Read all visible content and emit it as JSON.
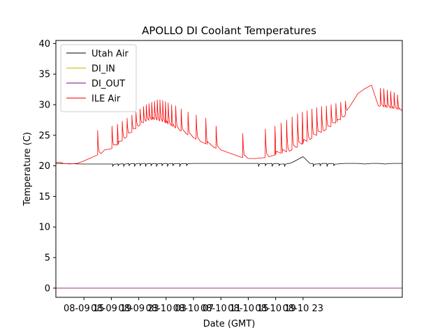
{
  "chart_data": {
    "type": "line",
    "title": "APOLLO DI Coolant Temperatures",
    "xlabel": "Date (GMT)",
    "ylabel": "Temperature (C)",
    "xlim_hours": [
      -4.1,
      46.5
    ],
    "ylim": [
      -1.5,
      40.5
    ],
    "yticks": [
      0,
      5,
      10,
      15,
      20,
      25,
      30,
      35,
      40
    ],
    "xticks": [
      {
        "hour": 0,
        "label": "08-09 15"
      },
      {
        "hour": 4,
        "label": "08-09 19"
      },
      {
        "hour": 8,
        "label": "08-09 23"
      },
      {
        "hour": 12,
        "label": "08-10 03"
      },
      {
        "hour": 16,
        "label": "08-10 07"
      },
      {
        "hour": 20,
        "label": "08-10 11"
      },
      {
        "hour": 24,
        "label": "08-10 15"
      },
      {
        "hour": 28,
        "label": "08-10 19"
      },
      {
        "hour": 32,
        "label": "08-10 23"
      }
    ],
    "legend_position": "top-left",
    "series": [
      {
        "name": "Utah Air",
        "color": "#000000",
        "x": [
          -4.1,
          0,
          4,
          8,
          12,
          16,
          20,
          24,
          28,
          29,
          30,
          30.5,
          31,
          31.5,
          32,
          33,
          34,
          35,
          36,
          37,
          38,
          39,
          40,
          41,
          42,
          43,
          44,
          45,
          45.5,
          46,
          46.5
        ],
        "values": [
          20.4,
          20.3,
          20.3,
          20.4,
          20.4,
          20.4,
          20.4,
          20.4,
          20.4,
          20.3,
          20.4,
          20.6,
          20.9,
          21.2,
          21.5,
          20.4,
          20.3,
          20.4,
          20.4,
          20.3,
          20.4,
          20.4,
          20.4,
          20.3,
          20.4,
          20.4,
          20.3,
          20.4,
          20.4,
          20.4,
          20.4
        ],
        "spikes": [
          {
            "hour": 4.2,
            "value": 19.9
          },
          {
            "hour": 5.0,
            "value": 20.0
          },
          {
            "hour": 5.8,
            "value": 19.9
          },
          {
            "hour": 6.6,
            "value": 20.0
          },
          {
            "hour": 7.4,
            "value": 19.9
          },
          {
            "hour": 8.2,
            "value": 20.0
          },
          {
            "hour": 9.0,
            "value": 19.9
          },
          {
            "hour": 9.8,
            "value": 20.0
          },
          {
            "hour": 10.6,
            "value": 19.9
          },
          {
            "hour": 11.4,
            "value": 20.0
          },
          {
            "hour": 12.2,
            "value": 19.9
          },
          {
            "hour": 13.0,
            "value": 20.0
          },
          {
            "hour": 14.0,
            "value": 19.9
          },
          {
            "hour": 15.0,
            "value": 20.0
          },
          {
            "hour": 25.5,
            "value": 19.9
          },
          {
            "hour": 26.5,
            "value": 20.0
          },
          {
            "hour": 27.5,
            "value": 19.9
          },
          {
            "hour": 28.5,
            "value": 20.0
          },
          {
            "hour": 29.3,
            "value": 19.9
          },
          {
            "hour": 33.5,
            "value": 19.9
          },
          {
            "hour": 34.5,
            "value": 20.0
          },
          {
            "hour": 35.5,
            "value": 19.9
          },
          {
            "hour": 36.5,
            "value": 20.0
          }
        ]
      },
      {
        "name": "DI_IN",
        "color": "#d4b000",
        "x": [
          -4.1,
          46.5
        ],
        "values": [
          0.0,
          0.0
        ]
      },
      {
        "name": "DI_OUT",
        "color": "#800080",
        "x": [
          -4.1,
          46.5
        ],
        "values": [
          0.0,
          0.0
        ]
      },
      {
        "name": "ILE Air",
        "color": "#ff0000",
        "x": [
          -4.1,
          -3.5,
          -3,
          -2,
          -1,
          0,
          1,
          2,
          2.5,
          3,
          4,
          5,
          6,
          7,
          8,
          9,
          10,
          11,
          12,
          13,
          14,
          15,
          16,
          17,
          18,
          19,
          20,
          21,
          22,
          23,
          24,
          25,
          26,
          27,
          28,
          29,
          30,
          31,
          32,
          33,
          34,
          35,
          36,
          37,
          38,
          39,
          40,
          41,
          42,
          43,
          44,
          45,
          46,
          46.5
        ],
        "values": [
          20.6,
          20.6,
          20.4,
          20.3,
          20.4,
          20.8,
          21.3,
          21.8,
          22.0,
          22.6,
          22.8,
          23.5,
          24.5,
          25.5,
          26.5,
          27.3,
          27.6,
          27.4,
          27.0,
          26.4,
          25.8,
          25.2,
          24.6,
          24.0,
          23.5,
          23.0,
          22.6,
          22.2,
          21.8,
          21.4,
          21.2,
          21.2,
          21.3,
          21.5,
          21.8,
          22.1,
          22.4,
          23.0,
          23.6,
          24.3,
          25.0,
          25.7,
          26.4,
          27.2,
          28.0,
          30.0,
          31.8,
          32.6,
          33.2,
          29.8,
          29.6,
          29.4,
          29.2,
          29.0
        ],
        "spikes": [
          {
            "hour": 2.0,
            "value": 25.8
          },
          {
            "hour": 4.1,
            "value": 26.5
          },
          {
            "hour": 4.9,
            "value": 26.8
          },
          {
            "hour": 5.6,
            "value": 27.3
          },
          {
            "hour": 6.3,
            "value": 27.8
          },
          {
            "hour": 7.0,
            "value": 28.3
          },
          {
            "hour": 7.6,
            "value": 28.8
          },
          {
            "hour": 8.2,
            "value": 29.3
          },
          {
            "hour": 8.7,
            "value": 29.7
          },
          {
            "hour": 9.1,
            "value": 30.0
          },
          {
            "hour": 9.5,
            "value": 30.2
          },
          {
            "hour": 9.9,
            "value": 30.4
          },
          {
            "hour": 10.3,
            "value": 30.6
          },
          {
            "hour": 10.7,
            "value": 30.8
          },
          {
            "hour": 11.1,
            "value": 30.8
          },
          {
            "hour": 11.5,
            "value": 30.7
          },
          {
            "hour": 11.9,
            "value": 30.5
          },
          {
            "hour": 12.3,
            "value": 30.3
          },
          {
            "hour": 12.8,
            "value": 30.0
          },
          {
            "hour": 13.4,
            "value": 29.8
          },
          {
            "hour": 14.2,
            "value": 29.3
          },
          {
            "hour": 15.2,
            "value": 28.8
          },
          {
            "hour": 16.4,
            "value": 28.3
          },
          {
            "hour": 17.8,
            "value": 27.8
          },
          {
            "hour": 19.3,
            "value": 26.5
          },
          {
            "hour": 23.2,
            "value": 25.3
          },
          {
            "hour": 26.5,
            "value": 26.0
          },
          {
            "hour": 27.9,
            "value": 26.5
          },
          {
            "hour": 28.8,
            "value": 27.0
          },
          {
            "hour": 29.6,
            "value": 27.5
          },
          {
            "hour": 30.4,
            "value": 28.0
          },
          {
            "hour": 31.2,
            "value": 28.5
          },
          {
            "hour": 31.9,
            "value": 28.8
          },
          {
            "hour": 32.6,
            "value": 29.0
          },
          {
            "hour": 33.3,
            "value": 29.3
          },
          {
            "hour": 34.0,
            "value": 29.5
          },
          {
            "hour": 34.7,
            "value": 29.7
          },
          {
            "hour": 35.4,
            "value": 29.8
          },
          {
            "hour": 36.1,
            "value": 30.0
          },
          {
            "hour": 36.8,
            "value": 30.2
          },
          {
            "hour": 37.5,
            "value": 30.4
          },
          {
            "hour": 38.2,
            "value": 30.6
          },
          {
            "hour": 43.3,
            "value": 32.7
          },
          {
            "hour": 43.8,
            "value": 32.6
          },
          {
            "hour": 44.3,
            "value": 32.4
          },
          {
            "hour": 44.8,
            "value": 32.2
          },
          {
            "hour": 45.3,
            "value": 32.0
          },
          {
            "hour": 45.8,
            "value": 31.6
          }
        ]
      }
    ]
  }
}
